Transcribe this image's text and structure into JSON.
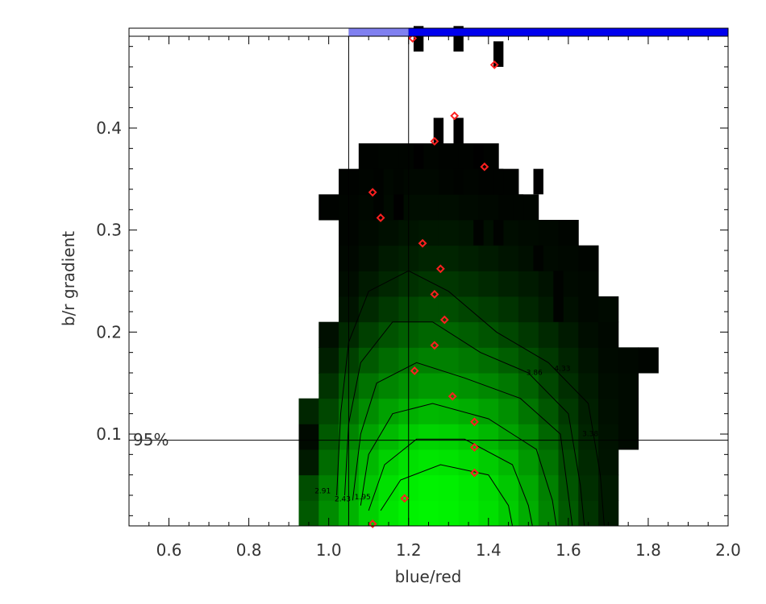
{
  "chart_data": {
    "type": "heatmap",
    "xlabel": "blue/red",
    "ylabel": "b/r gradient",
    "xlim": [
      0.5,
      2.0
    ],
    "ylim": [
      0.01,
      0.49
    ],
    "x_ticks": [
      "0.6",
      "0.8",
      "1.0",
      "1.2",
      "1.4",
      "1.6",
      "1.8",
      "2.0"
    ],
    "y_ticks": [
      "0.1",
      "0.2",
      "0.3",
      "0.4"
    ],
    "x_tick_values": [
      0.6,
      0.8,
      1.0,
      1.2,
      1.4,
      1.6,
      1.8,
      2.0
    ],
    "y_tick_values": [
      0.1,
      0.2,
      0.3,
      0.4
    ],
    "colors": {
      "heat_low": "#000000",
      "heat_high": "#00ff00",
      "marker": "#ff2020",
      "bar_white": "#ffffff",
      "bar_light": "#8080f0",
      "bar_dark": "#0000ee"
    },
    "top_bar_segments": [
      {
        "x0": 0.5,
        "x1": 1.05,
        "color": "#ffffff"
      },
      {
        "x0": 1.05,
        "x1": 1.2,
        "color": "#8080f0"
      },
      {
        "x0": 1.2,
        "x1": 2.0,
        "color": "#0000ee"
      }
    ],
    "vertical_lines": [
      1.05,
      1.2
    ],
    "horizontal_line": {
      "y": 0.094,
      "label": "95%"
    },
    "grid": {
      "x_start": 0.925,
      "y_start": 0.01,
      "cell_w": 0.05,
      "cell_h": 0.025,
      "rows": [
        {
          "row": 0,
          "c0": 0,
          "vals": [
            0.35,
            0.55,
            0.7,
            0.82,
            0.9,
            0.95,
            0.96,
            0.95,
            0.92,
            0.88,
            0.8,
            0.68,
            0.52,
            0.35,
            0.2,
            0.1
          ]
        },
        {
          "row": 1,
          "c0": 0,
          "vals": [
            0.3,
            0.5,
            0.66,
            0.78,
            0.88,
            0.93,
            0.95,
            0.94,
            0.91,
            0.86,
            0.78,
            0.66,
            0.5,
            0.33,
            0.18,
            0.1
          ]
        },
        {
          "row": 2,
          "c0": 0,
          "vals": [
            0.1,
            0.42,
            0.6,
            0.72,
            0.82,
            0.88,
            0.9,
            0.89,
            0.86,
            0.8,
            0.72,
            0.6,
            0.45,
            0.3,
            0.16,
            0.08
          ]
        },
        {
          "row": 3,
          "c0": 0,
          "vals": [
            0.04,
            0.35,
            0.52,
            0.64,
            0.73,
            0.8,
            0.83,
            0.82,
            0.78,
            0.72,
            0.64,
            0.54,
            0.4,
            0.26,
            0.14,
            0.07,
            0.04
          ]
        },
        {
          "row": 4,
          "c0": 0,
          "vals": [
            0.15,
            0.28,
            0.44,
            0.55,
            0.63,
            0.69,
            0.72,
            0.71,
            0.68,
            0.63,
            0.56,
            0.46,
            0.34,
            0.22,
            0.12,
            0.06,
            0.04
          ]
        },
        {
          "row": 5,
          "c0": 1,
          "vals": [
            0.2,
            0.35,
            0.45,
            0.52,
            0.57,
            0.6,
            0.6,
            0.57,
            0.53,
            0.47,
            0.38,
            0.28,
            0.18,
            0.1,
            0.05,
            0.04
          ]
        },
        {
          "row": 6,
          "c0": 1,
          "vals": [
            0.12,
            0.25,
            0.35,
            0.42,
            0.47,
            0.5,
            0.5,
            0.47,
            0.43,
            0.37,
            0.3,
            0.22,
            0.14,
            0.08,
            0.04,
            0.03,
            0.02
          ]
        },
        {
          "row": 7,
          "c0": 1,
          "vals": [
            0.06,
            0.16,
            0.25,
            0.32,
            0.37,
            0.4,
            0.4,
            0.37,
            0.33,
            0.28,
            0.22,
            0.16,
            0.1,
            0.05,
            0.03
          ]
        },
        {
          "row": 8,
          "c0": 2,
          "vals": [
            0.08,
            0.16,
            0.22,
            0.27,
            0.3,
            0.3,
            0.27,
            0.24,
            0.2,
            0.15,
            0.1,
            0.06,
            0.03,
            0.04
          ]
        },
        {
          "row": 9,
          "c0": 2,
          "vals": [
            0.05,
            0.1,
            0.15,
            0.19,
            0.21,
            0.21,
            0.19,
            0.16,
            0.13,
            0.1,
            0.07,
            0.04,
            0.03
          ]
        },
        {
          "row": 10,
          "c0": 2,
          "vals": [
            0.03,
            0.06,
            0.1,
            0.12,
            0.14,
            0.14,
            0.12,
            0.1,
            0.08,
            0.06,
            0.04,
            0.03,
            0.02
          ]
        },
        {
          "row": 11,
          "c0": 2,
          "vals": [
            0.02,
            0.04,
            0.06,
            0.08,
            0.09,
            0.09,
            0.08,
            0.06,
            0.05,
            0.04,
            0.03,
            0.02
          ]
        },
        {
          "row": 12,
          "c0": 1,
          "vals": [
            0.01,
            0.02,
            0.03,
            0.04,
            0.05,
            0.05,
            0.05,
            0.04,
            0.03,
            0.02,
            0.02
          ]
        },
        {
          "row": 13,
          "c0": 2,
          "vals": [
            0.01,
            0.02,
            0.03,
            0.03,
            0.03,
            0.02,
            0.02,
            0.01,
            0.01
          ]
        },
        {
          "row": 14,
          "c0": 3,
          "vals": [
            0.01,
            0.02,
            0.02,
            0.02,
            0.01,
            0.01,
            0.01
          ]
        }
      ]
    },
    "sparse_cells": [
      {
        "x": 1.125,
        "y": 0.3475,
        "v": 0.01
      },
      {
        "x": 1.175,
        "y": 0.3475,
        "v": 0.02
      },
      {
        "x": 1.325,
        "y": 0.3475,
        "v": 0.01
      },
      {
        "x": 1.425,
        "y": 0.3475,
        "v": 0.01
      },
      {
        "x": 1.125,
        "y": 0.3225,
        "v": 0.01
      },
      {
        "x": 1.175,
        "y": 0.3225,
        "v": 0.0
      },
      {
        "x": 1.525,
        "y": 0.3475,
        "v": 0.0
      },
      {
        "x": 1.475,
        "y": 0.3225,
        "v": 0.02
      },
      {
        "x": 1.225,
        "y": 0.3725,
        "v": 0.0
      },
      {
        "x": 1.275,
        "y": 0.3975,
        "v": 0.0
      },
      {
        "x": 1.325,
        "y": 0.3975,
        "v": 0.0
      },
      {
        "x": 1.375,
        "y": 0.3725,
        "v": 0.0
      },
      {
        "x": 1.425,
        "y": 0.4725,
        "v": 0.0
      },
      {
        "x": 1.225,
        "y": 0.4875,
        "v": 0.0
      },
      {
        "x": 1.325,
        "y": 0.4875,
        "v": 0.0
      },
      {
        "x": 1.525,
        "y": 0.2725,
        "v": 0.01
      },
      {
        "x": 1.575,
        "y": 0.2475,
        "v": 0.01
      },
      {
        "x": 1.375,
        "y": 0.2975,
        "v": 0.01
      },
      {
        "x": 1.425,
        "y": 0.2975,
        "v": 0.01
      },
      {
        "x": 1.575,
        "y": 0.2225,
        "v": 0.01
      }
    ],
    "series": [
      {
        "type": "scatter",
        "x": [
          1.21,
          1.415,
          1.315,
          1.265,
          1.39,
          1.11,
          1.13,
          1.235,
          1.28,
          1.265,
          1.29,
          1.265,
          1.215,
          1.31,
          1.365,
          1.365,
          1.365,
          1.19,
          1.11
        ],
        "y": [
          0.488,
          0.462,
          0.412,
          0.387,
          0.362,
          0.337,
          0.312,
          0.287,
          0.262,
          0.237,
          0.212,
          0.187,
          0.162,
          0.137,
          0.112,
          0.087,
          0.062,
          0.037,
          0.012
        ]
      }
    ],
    "contours": [
      {
        "label": "4.33",
        "lx": 1.585,
        "ly": 0.162,
        "points": [
          [
            1.02,
            0.04
          ],
          [
            1.03,
            0.12
          ],
          [
            1.05,
            0.19
          ],
          [
            1.1,
            0.24
          ],
          [
            1.2,
            0.26
          ],
          [
            1.3,
            0.24
          ],
          [
            1.42,
            0.2
          ],
          [
            1.55,
            0.17
          ],
          [
            1.65,
            0.13
          ],
          [
            1.68,
            0.06
          ],
          [
            1.69,
            0.01
          ]
        ]
      },
      {
        "label": "3.86",
        "lx": 1.515,
        "ly": 0.158,
        "points": [
          [
            1.04,
            0.04
          ],
          [
            1.05,
            0.11
          ],
          [
            1.08,
            0.17
          ],
          [
            1.16,
            0.21
          ],
          [
            1.26,
            0.21
          ],
          [
            1.38,
            0.18
          ],
          [
            1.5,
            0.16
          ],
          [
            1.6,
            0.12
          ],
          [
            1.63,
            0.05
          ],
          [
            1.64,
            0.01
          ]
        ]
      },
      {
        "label": "3.38",
        "lx": 1.655,
        "ly": 0.098,
        "points": [
          [
            1.06,
            0.035
          ],
          [
            1.08,
            0.1
          ],
          [
            1.12,
            0.15
          ],
          [
            1.22,
            0.17
          ],
          [
            1.34,
            0.155
          ],
          [
            1.48,
            0.135
          ],
          [
            1.58,
            0.1
          ],
          [
            1.6,
            0.04
          ],
          [
            1.61,
            0.01
          ]
        ]
      },
      {
        "label": "2.91",
        "lx": 0.985,
        "ly": 0.042,
        "points": [
          [
            1.08,
            0.03
          ],
          [
            1.1,
            0.08
          ],
          [
            1.16,
            0.12
          ],
          [
            1.26,
            0.13
          ],
          [
            1.4,
            0.115
          ],
          [
            1.52,
            0.085
          ],
          [
            1.56,
            0.035
          ],
          [
            1.57,
            0.01
          ]
        ]
      },
      {
        "label": "2.43",
        "lx": 1.035,
        "ly": 0.034,
        "points": [
          [
            1.1,
            0.025
          ],
          [
            1.14,
            0.07
          ],
          [
            1.22,
            0.095
          ],
          [
            1.34,
            0.095
          ],
          [
            1.46,
            0.07
          ],
          [
            1.5,
            0.03
          ],
          [
            1.51,
            0.01
          ]
        ]
      },
      {
        "label": "1.95",
        "lx": 1.085,
        "ly": 0.036,
        "points": [
          [
            1.13,
            0.025
          ],
          [
            1.18,
            0.055
          ],
          [
            1.28,
            0.07
          ],
          [
            1.4,
            0.06
          ],
          [
            1.45,
            0.03
          ],
          [
            1.46,
            0.01
          ]
        ]
      }
    ]
  }
}
